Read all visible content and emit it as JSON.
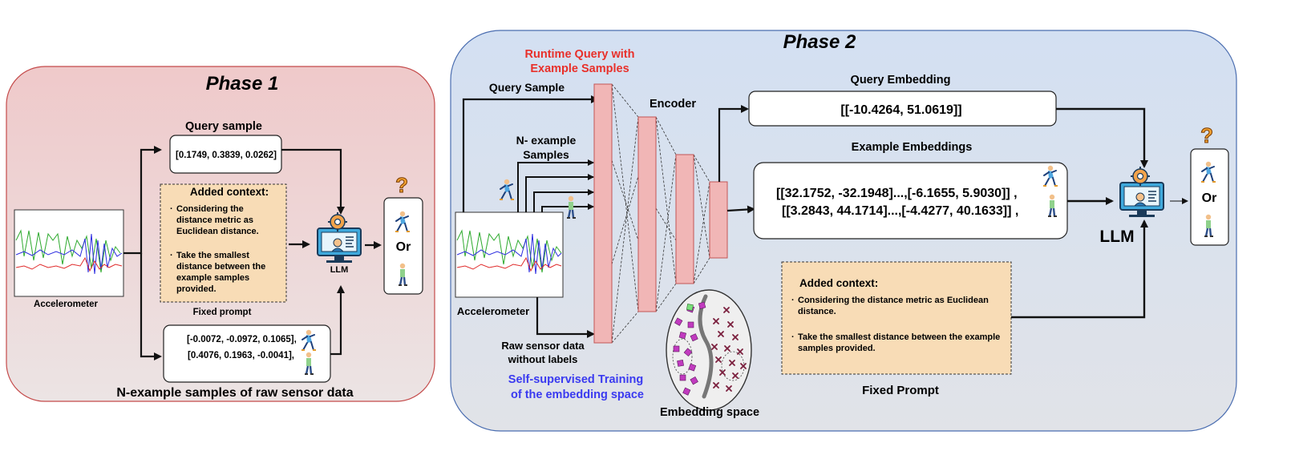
{
  "phase1": {
    "title": "Phase 1",
    "query_title": "Query sample",
    "query_value": "[0.1749, 0.3839, 0.0262]",
    "context_title": "Added context:",
    "context_bullet1": [
      "Considering the",
      "distance metric as",
      "Euclidean distance."
    ],
    "context_bullet2": [
      "Take the smallest",
      "distance between the",
      "example samples",
      "provided."
    ],
    "fixed_prompt": "Fixed prompt",
    "sensor_label": "Accelerometer",
    "llm_label": "LLM",
    "or_label": "Or",
    "example_row1": "[-0.0072, -0.0972, 0.1065],",
    "example_row2": "[0.4076, 0.1963, -0.0041],",
    "examples_caption": "N-example samples of raw sensor data"
  },
  "phase2": {
    "title": "Phase 2",
    "runtime_query": [
      "Runtime Query with",
      "Example Samples"
    ],
    "query_sample": "Query Sample",
    "n_example": [
      "N- example",
      "Samples"
    ],
    "encoder": "Encoder",
    "sensor_label": "Accelerometer",
    "raw_sensor": [
      "Raw sensor data",
      "without labels"
    ],
    "self_supervised": [
      "Self-supervised Training",
      "of the embedding space"
    ],
    "embedding_space": "Embedding space",
    "query_embedding_title": "Query Embedding",
    "query_embedding_value": "[[-10.4264, 51.0619]]",
    "example_embeddings_title": "Example Embeddings",
    "example_embedding_row1": "[[32.1752, -32.1948]...,[-6.1655, 5.9030]]  ,",
    "example_embedding_row2": "[[3.2843, 44.1714]...,[-4.4277, 40.1633]] ,",
    "context_title": "Added context:",
    "context_bullet1": [
      "Considering the distance metric as Euclidean",
      "distance."
    ],
    "context_bullet2": [
      "Take the smallest distance between the example",
      "samples provided."
    ],
    "fixed_prompt": "Fixed Prompt",
    "llm_label": "LLM",
    "or_label": "Or"
  },
  "colors": {
    "phase1_bg": "#f0cfd0",
    "phase2_bg": "#d4e1f3",
    "context_bg": "#f8dcb6",
    "encoder_layer": "#f1b6b6",
    "runtime_red": "#e8302a",
    "self_supervised_blue": "#3a3af0",
    "monitor_blue": "#3fa9dc",
    "purple_point": "#c13bbf",
    "maroon_point": "#7a1f3d",
    "green_point": "#7be07b"
  },
  "icons": [
    "question-icon",
    "runner-icon",
    "walker-icon",
    "llm-gear-icon",
    "accelerometer-plot"
  ]
}
